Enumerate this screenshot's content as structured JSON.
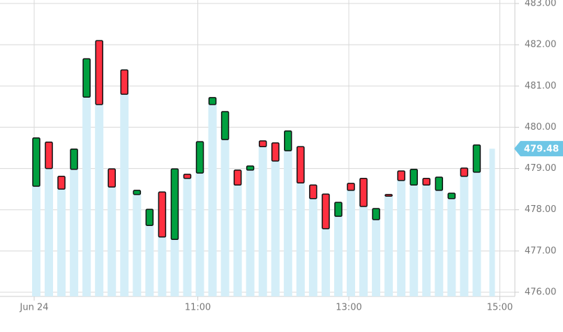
{
  "chart_data": {
    "type": "candlestick",
    "categories": [
      "Jun 24",
      null,
      null,
      null,
      null,
      null,
      null,
      null,
      null,
      null,
      null,
      null,
      null,
      "11:00",
      null,
      null,
      null,
      null,
      null,
      null,
      null,
      null,
      null,
      null,
      null,
      "13:00",
      null,
      null,
      null,
      null,
      null,
      null,
      null,
      null,
      null,
      null,
      null,
      "15:00"
    ],
    "open": [
      478.57,
      479.64,
      478.81,
      478.98,
      480.73,
      482.1,
      478.99,
      481.39,
      478.37,
      477.62,
      478.43,
      477.28,
      478.86,
      478.89,
      480.55,
      479.7,
      478.96,
      478.96,
      479.67,
      479.62,
      479.43,
      479.53,
      478.6,
      478.38,
      477.84,
      478.64,
      478.76,
      477.76,
      478.37,
      478.94,
      478.6,
      478.76,
      478.47,
      478.27,
      479.01,
      478.91,
      null,
      null
    ],
    "close": [
      479.74,
      479.0,
      478.5,
      479.47,
      481.66,
      480.55,
      478.55,
      480.8,
      478.47,
      478.01,
      477.34,
      478.99,
      478.76,
      479.65,
      480.72,
      480.38,
      478.6,
      479.06,
      479.53,
      479.18,
      479.91,
      478.65,
      478.27,
      477.54,
      478.18,
      478.47,
      478.08,
      478.03,
      478.33,
      478.71,
      478.98,
      478.6,
      478.79,
      478.4,
      478.81,
      479.57,
      null,
      null
    ],
    "up_color": "#00a040",
    "down_color": "#ff3040",
    "column_color": "#d4eef8",
    "last_price": {
      "value": 479.48,
      "label": "479.48"
    },
    "ylim": [
      476,
      483
    ],
    "yticks": [
      {
        "value": 476,
        "label": "476.00"
      },
      {
        "value": 477,
        "label": "477.00"
      },
      {
        "value": 478,
        "label": "478.00"
      },
      {
        "value": 479,
        "label": "479.00"
      },
      {
        "value": 480,
        "label": "480.00"
      },
      {
        "value": 481,
        "label": "481.00"
      },
      {
        "value": 482,
        "label": "482.00"
      },
      {
        "value": 483,
        "label": "483.00"
      }
    ],
    "grid": true
  }
}
